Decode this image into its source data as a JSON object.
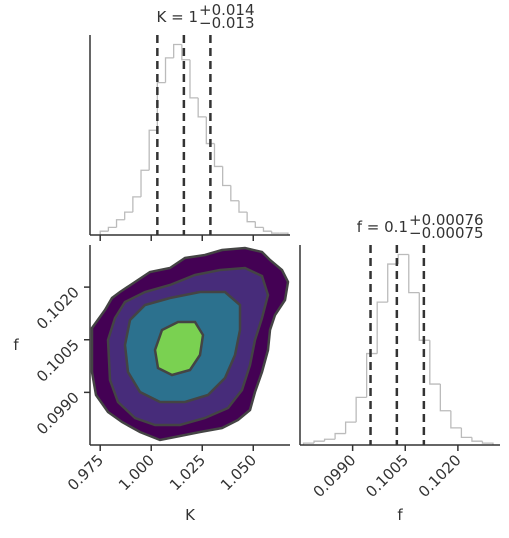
{
  "chart_data": [
    {
      "type": "histogram",
      "title": "K = 1",
      "title_upper": "+0.014",
      "title_lower": "−0.013",
      "bins": [
        0.975,
        0.979,
        0.983,
        0.987,
        0.991,
        0.995,
        0.999,
        1.003,
        1.007,
        1.011,
        1.015,
        1.019,
        1.023,
        1.027,
        1.031,
        1.035,
        1.039,
        1.043,
        1.047,
        1.051,
        1.055,
        1.059,
        1.063,
        1.067
      ],
      "values": [
        2,
        4,
        8,
        12,
        20,
        34,
        55,
        80,
        93,
        100,
        92,
        72,
        62,
        48,
        36,
        26,
        18,
        12,
        7,
        4,
        2,
        1,
        1
      ],
      "color": "#bbbbbb",
      "xlim": [
        0.97,
        1.068
      ],
      "ylim": [
        0,
        105
      ],
      "quantiles": [
        1.003,
        1.016,
        1.029
      ]
    },
    {
      "type": "contour",
      "xlabel": "K",
      "ylabel": "f",
      "xlim": [
        0.97,
        1.068
      ],
      "ylim": [
        0.0975,
        0.1032
      ],
      "xticks": [
        0.975,
        {
          "value": 1,
          "label": "1.000"
        },
        1.025,
        {
          "value": 1.05,
          "label": "1.050"
        }
      ],
      "yticks": [
        {
          "value": 0.099,
          "label": "0.0990"
        },
        0.1005,
        {
          "value": 0.102,
          "label": "0.1020"
        }
      ]
    },
    {
      "type": "histogram",
      "title": "f = 0.1",
      "title_upper": "+0.00076",
      "title_lower": "−0.00075",
      "xlabel": "f",
      "bins": [
        0.0976,
        0.0979,
        0.0982,
        0.0985,
        0.0988,
        0.0991,
        0.0994,
        0.0997,
        0.1,
        0.1003,
        0.1006,
        0.1009,
        0.1012,
        0.1015,
        0.1018,
        0.1021,
        0.1024,
        0.1027,
        0.103
      ],
      "values": [
        1,
        2,
        3,
        6,
        12,
        25,
        48,
        75,
        95,
        100,
        80,
        55,
        32,
        18,
        9,
        4,
        2,
        1
      ],
      "color": "#bbbbbb",
      "xlim": [
        0.0975,
        0.1032
      ],
      "ylim": [
        0,
        105
      ],
      "quantiles": [
        0.09951,
        0.10026,
        0.10103
      ],
      "xticks": [
        {
          "value": 0.099,
          "label": "0.0990"
        },
        0.1005,
        {
          "value": 0.102,
          "label": "0.1020"
        }
      ]
    }
  ]
}
